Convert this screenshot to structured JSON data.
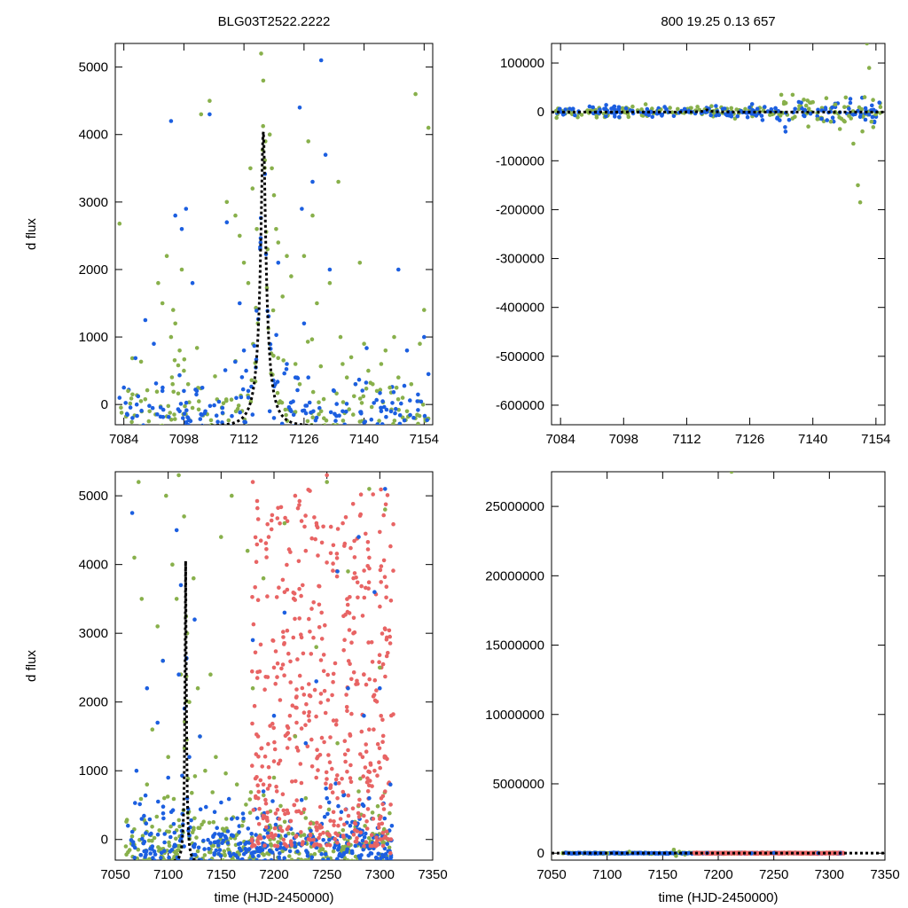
{
  "figure": {
    "colors": {
      "green": "#88b04b",
      "blue": "#1c5fe0",
      "red": "#e86464",
      "model": "#000000"
    }
  },
  "chart_data": [
    {
      "id": "top_left",
      "type": "scatter",
      "title": "BLG03T2522.2222",
      "xlabel": "",
      "ylabel": "d flux",
      "xlim": [
        7082,
        7156
      ],
      "ylim": [
        -300,
        5350
      ],
      "xticks": [
        7084,
        7098,
        7112,
        7126,
        7140,
        7154
      ],
      "xtick_labels": [
        "7084",
        "7098",
        "7112",
        "7126",
        "7140",
        "7154"
      ],
      "yticks": [
        0,
        1000,
        2000,
        3000,
        4000,
        5000
      ],
      "ytick_labels": [
        "0",
        "1000",
        "2000",
        "3000",
        "4000",
        "5000"
      ],
      "model": {
        "t0": 7116.5,
        "peak": 4050,
        "width": 3.5,
        "base": -320
      },
      "series": [
        {
          "name": "green",
          "color": "#88b04b",
          "x": [
            7083,
            7085,
            7086,
            7088,
            7090,
            7092,
            7093,
            7094,
            7095,
            7095.5,
            7096,
            7097,
            7097.5,
            7098,
            7099,
            7100,
            7102,
            7104,
            7108,
            7110,
            7111,
            7112,
            7113,
            7113.5,
            7114,
            7115,
            7116,
            7116.5,
            7117,
            7117.5,
            7118,
            7118.5,
            7119,
            7119.5,
            7120,
            7121,
            7122,
            7123,
            7124,
            7125,
            7126,
            7127,
            7128,
            7129,
            7130,
            7132,
            7134,
            7134.5,
            7135,
            7136,
            7137,
            7138,
            7139,
            7140,
            7141,
            7142,
            7143,
            7144,
            7145,
            7146,
            7147,
            7148,
            7149,
            7150,
            7151,
            7152,
            7153,
            7154,
            7155
          ],
          "y": [
            2680,
            200,
            150,
            50,
            -100,
            1800,
            1500,
            2200,
            1000,
            1400,
            1200,
            800,
            2000,
            500,
            300,
            -50,
            4300,
            4500,
            3000,
            2800,
            2500,
            2100,
            1800,
            3500,
            3200,
            2600,
            5200,
            4800,
            3900,
            2300,
            4000,
            3500,
            3100,
            2600,
            2400,
            1600,
            2200,
            1900,
            600,
            300,
            2200,
            3900,
            2800,
            1500,
            -100,
            1800,
            3300,
            1000,
            600,
            400,
            700,
            300,
            2100,
            900,
            500,
            300,
            200,
            600,
            800,
            250,
            1000,
            400,
            100,
            -100,
            300,
            4600,
            900,
            1400,
            4100
          ]
        },
        {
          "name": "blue",
          "color": "#1c5fe0",
          "x": [
            7083,
            7084,
            7086,
            7087,
            7089,
            7091,
            7093,
            7095,
            7096,
            7097,
            7097.5,
            7098,
            7098.5,
            7099,
            7100,
            7101,
            7103,
            7104,
            7107,
            7108,
            7111,
            7112,
            7112.5,
            7113,
            7114,
            7118,
            7119,
            7120,
            7122,
            7123,
            7124,
            7125,
            7125.5,
            7126,
            7127,
            7128,
            7130,
            7131,
            7132,
            7133,
            7135,
            7138,
            7144,
            7148,
            7150,
            7154,
            7155
          ],
          "y": [
            100,
            250,
            -200,
            0,
            1250,
            900,
            200,
            4200,
            2800,
            -100,
            2600,
            200,
            2900,
            -200,
            1800,
            200,
            -100,
            4300,
            -50,
            2700,
            1500,
            800,
            500,
            200,
            -150,
            -100,
            -200,
            2100,
            600,
            -100,
            400,
            4400,
            2900,
            1200,
            400,
            3300,
            5100,
            3700,
            2000,
            200,
            -100,
            300,
            -100,
            2000,
            800,
            1000,
            450
          ]
        }
      ]
    },
    {
      "id": "top_right",
      "type": "scatter",
      "title": "800  19.25  0.13  657",
      "xlabel": "",
      "ylabel": "",
      "xlim": [
        7082,
        7156
      ],
      "ylim": [
        -640000,
        140000
      ],
      "xticks": [
        7084,
        7098,
        7112,
        7126,
        7140,
        7154
      ],
      "xtick_labels": [
        "7084",
        "7098",
        "7112",
        "7126",
        "7140",
        "7154"
      ],
      "yticks": [
        100000,
        0,
        -100000,
        -200000,
        -300000,
        -400000,
        -500000,
        -600000
      ],
      "ytick_labels": [
        "100000",
        "0",
        "-100000",
        "-200000",
        "-300000",
        "-400000",
        "-500000",
        "-600000"
      ],
      "model": {
        "t0": 7116.5,
        "peak": 4050,
        "width": 3.5,
        "base": -320
      },
      "series": [
        {
          "name": "green",
          "color": "#88b04b",
          "x": [
            7083,
            7086,
            7090,
            7094,
            7098,
            7102,
            7106,
            7110,
            7113,
            7114,
            7116,
            7118,
            7120,
            7122,
            7125,
            7129,
            7131,
            7133,
            7134,
            7136,
            7137,
            7138,
            7139,
            7140,
            7141,
            7142,
            7143,
            7144,
            7145,
            7146,
            7147,
            7148,
            7149,
            7150,
            7150.5,
            7151,
            7151.5,
            7152,
            7152.5,
            7153,
            7154,
            7155
          ],
          "y": [
            2000,
            -1000,
            3000,
            -2000,
            1000,
            5000,
            2000,
            6000,
            8000,
            3000,
            5000,
            -2000,
            4000,
            1000,
            6000,
            2000,
            -5000,
            35000,
            18000,
            -10000,
            12000,
            25000,
            -30000,
            20000,
            -15000,
            8000,
            28000,
            -20000,
            15000,
            -35000,
            10000,
            -8000,
            -65000,
            -150000,
            -185000,
            -40000,
            30000,
            140000,
            90000,
            -20000,
            -5000,
            10000
          ]
        },
        {
          "name": "blue",
          "color": "#1c5fe0",
          "x": [
            7084,
            7088,
            7092,
            7096,
            7100,
            7104,
            7108,
            7112,
            7116,
            7120,
            7122,
            7124,
            7126,
            7130,
            7134,
            7138,
            7142,
            7146,
            7150,
            7154
          ],
          "y": [
            0,
            1000,
            -1000,
            -4000,
            2000,
            500,
            -500,
            1000,
            0,
            6000,
            -2000,
            2000,
            -1000,
            1000,
            -2000,
            2000,
            3000,
            -1000,
            2000,
            1000
          ]
        }
      ]
    },
    {
      "id": "bottom_left",
      "type": "scatter",
      "title": "",
      "xlabel": "time (HJD-2450000)",
      "ylabel": "d flux",
      "xlim": [
        7050,
        7350
      ],
      "ylim": [
        -300,
        5350
      ],
      "xticks": [
        7050,
        7100,
        7150,
        7200,
        7250,
        7300,
        7350
      ],
      "xtick_labels": [
        "7050",
        "7100",
        "7150",
        "7200",
        "7250",
        "7300",
        "7350"
      ],
      "yticks": [
        0,
        1000,
        2000,
        3000,
        4000,
        5000
      ],
      "ytick_labels": [
        "0",
        "1000",
        "2000",
        "3000",
        "4000",
        "5000"
      ],
      "model": {
        "t0": 7116.5,
        "peak": 4050,
        "width": 3.5,
        "base": -320
      },
      "series": [
        {
          "name": "green",
          "color": "#88b04b",
          "x": [
            7060,
            7068,
            7072,
            7075,
            7080,
            7085,
            7090,
            7095,
            7098,
            7100,
            7104,
            7108,
            7110,
            7112,
            7115,
            7118,
            7120,
            7124,
            7128,
            7130,
            7135,
            7140,
            7145,
            7150,
            7155,
            7160,
            7165,
            7170,
            7175,
            7180,
            7190,
            7200,
            7210,
            7220,
            7230,
            7240,
            7250,
            7260,
            7270,
            7280,
            7290,
            7300,
            7305
          ],
          "y": [
            -100,
            4100,
            5200,
            3500,
            800,
            1600,
            3100,
            2600,
            5000,
            1200,
            4000,
            3500,
            5300,
            2400,
            4700,
            3000,
            2000,
            3800,
            2200,
            1500,
            1000,
            2400,
            1200,
            4400,
            300,
            5000,
            800,
            200,
            4200,
            2200,
            3800,
            900,
            4600,
            1500,
            600,
            2800,
            5200,
            1400,
            3900,
            700,
            5100,
            2500,
            4800
          ]
        },
        {
          "name": "blue",
          "color": "#1c5fe0",
          "x": [
            7062,
            7066,
            7070,
            7075,
            7080,
            7085,
            7090,
            7095,
            7100,
            7103,
            7106,
            7108,
            7110,
            7112,
            7115,
            7118,
            7120,
            7125,
            7130,
            7140,
            7160,
            7180,
            7190,
            7200,
            7210,
            7220,
            7230,
            7240,
            7250,
            7260,
            7270,
            7280,
            7285,
            7290,
            7295,
            7300,
            7305,
            7310
          ],
          "y": [
            200,
            4750,
            1000,
            300,
            2200,
            -100,
            1700,
            2600,
            900,
            400,
            100,
            4500,
            2400,
            3700,
            -100,
            600,
            1200,
            3200,
            1500,
            -50,
            300,
            2900,
            700,
            1800,
            3300,
            -100,
            1400,
            2300,
            600,
            3900,
            2200,
            4400,
            1800,
            600,
            3600,
            2200,
            5100,
            800
          ]
        },
        {
          "name": "red",
          "color": "#e86464",
          "x": [
            7180,
            7185,
            7190,
            7195,
            7200,
            7205,
            7210,
            7215,
            7220,
            7225,
            7230,
            7235,
            7240,
            7245,
            7250,
            7255,
            7260,
            7265,
            7270,
            7275,
            7280,
            7285,
            7290,
            7295,
            7300,
            7305,
            7310
          ],
          "y": [
            5200,
            1500,
            800,
            4400,
            2500,
            300,
            3600,
            1800,
            5000,
            1100,
            4200,
            2700,
            900,
            3300,
            5300,
            2100,
            600,
            4600,
            1300,
            3000,
            500,
            2400,
            4100,
            1000,
            300,
            700,
            -200
          ]
        }
      ]
    },
    {
      "id": "bottom_right",
      "type": "scatter",
      "title": "",
      "xlabel": "time (HJD-2450000)",
      "ylabel": "",
      "xlim": [
        7050,
        7350
      ],
      "ylim": [
        -500000,
        27500000
      ],
      "xticks": [
        7050,
        7100,
        7150,
        7200,
        7250,
        7300,
        7350
      ],
      "xtick_labels": [
        "7050",
        "7100",
        "7150",
        "7200",
        "7250",
        "7300",
        "7350"
      ],
      "yticks": [
        0,
        5000000,
        10000000,
        15000000,
        20000000,
        25000000
      ],
      "ytick_labels": [
        "0",
        "5000000",
        "10000000",
        "15000000",
        "20000000",
        "25000000"
      ],
      "model": {
        "t0": 7116.5,
        "peak": 4050,
        "width": 3.5,
        "base": -320
      },
      "series": [
        {
          "name": "green",
          "color": "#88b04b",
          "x": [
            7060,
            7080,
            7100,
            7120,
            7140,
            7160,
            7162,
            7165,
            7170,
            7212
          ],
          "y": [
            0,
            50000,
            0,
            100000,
            -50000,
            250000,
            -200000,
            100000,
            -100000,
            27500000
          ]
        },
        {
          "name": "blue",
          "color": "#1c5fe0",
          "x": [
            7065,
            7080,
            7095,
            7110,
            7125,
            7140,
            7155,
            7170,
            7190,
            7210,
            7230,
            7250,
            7270,
            7290,
            7310
          ],
          "y": [
            0,
            20000,
            -10000,
            30000,
            0,
            10000,
            -20000,
            0,
            15000,
            0,
            -10000,
            20000,
            0,
            10000,
            0
          ]
        },
        {
          "name": "red",
          "color": "#e86464",
          "x": [
            7180,
            7195,
            7210,
            7225,
            7240,
            7255,
            7270,
            7285,
            7300,
            7313
          ],
          "y": [
            0,
            20000,
            -10000,
            0,
            15000,
            -20000,
            0,
            10000,
            0,
            -5000
          ]
        }
      ]
    }
  ]
}
